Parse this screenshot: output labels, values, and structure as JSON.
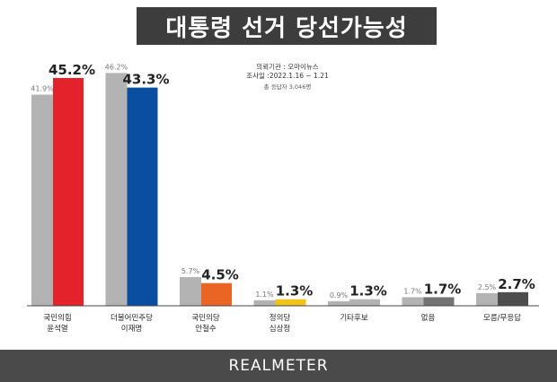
{
  "title": "대통령 선거 당선가능성",
  "survey_info": {
    "agency": "의뢰기관 : 오마이뉴스",
    "period": "조사일 :2022.1.16 ~ 1.21",
    "sample": "총 응답자 3,046명"
  },
  "footer": {
    "brand": "REALMETER"
  },
  "chart_data": {
    "type": "bar",
    "categories": [
      [
        "국민의힘",
        "윤석열"
      ],
      [
        "더불어민주당",
        "이재명"
      ],
      [
        "국민의당",
        "안철수"
      ],
      [
        "정의당",
        "심상정"
      ],
      [
        "기타후보"
      ],
      [
        "없음"
      ],
      [
        "모름/무응답"
      ]
    ],
    "series": [
      {
        "color": "#b3b3b3",
        "values": [
          41.9,
          46.2,
          5.7,
          1.1,
          0.9,
          1.7,
          2.5
        ],
        "labels": [
          "41.9%",
          "46.2%",
          "5.7%",
          "1.1%",
          "0.9%",
          "1.7%",
          "2.5%"
        ]
      },
      {
        "colors": [
          "#e3222b",
          "#0a4ea1",
          "#ea6424",
          "#f0c419",
          "#b3b3b3",
          "#737373",
          "#4d4d4d"
        ],
        "values": [
          45.2,
          43.3,
          4.5,
          1.3,
          1.3,
          1.7,
          2.7
        ],
        "labels": [
          "45.2%",
          "43.3%",
          "4.5%",
          "1.3%",
          "1.3%",
          "1.7%",
          "2.7%"
        ]
      }
    ],
    "ylim": [
      0,
      50
    ],
    "grid": false,
    "xlabel": "",
    "ylabel": ""
  }
}
